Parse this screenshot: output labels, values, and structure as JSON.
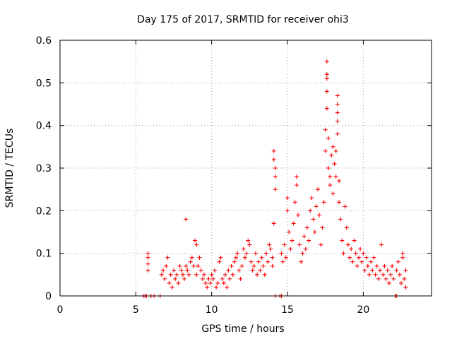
{
  "chart_data": {
    "type": "scatter",
    "title": "Day 175 of 2017, SRMTID for receiver ohi3",
    "xlabel": "GPS time / hours",
    "ylabel": "SRMTID / TECUs",
    "xlim": [
      0,
      24.5
    ],
    "ylim": [
      0,
      0.6
    ],
    "xticks": [
      0,
      5,
      10,
      15,
      20
    ],
    "yticks": [
      0,
      0.1,
      0.2,
      0.3,
      0.4,
      0.5,
      0.6
    ],
    "xtick_labels": [
      "0",
      "5",
      "10",
      "15",
      "20"
    ],
    "ytick_labels": [
      "0",
      "0.1",
      "0.2",
      "0.3",
      "0.4",
      "0.5",
      "0.6"
    ],
    "grid": true,
    "legend": "none",
    "marker": "plus",
    "marker_color": "#ff0000",
    "series": [
      {
        "name": "SRMTID",
        "points": [
          [
            5.5,
            0.0
          ],
          [
            5.6,
            0.0
          ],
          [
            5.7,
            0.0
          ],
          [
            6.0,
            0.0
          ],
          [
            6.2,
            0.0
          ],
          [
            6.6,
            0.0
          ],
          [
            5.8,
            0.1
          ],
          [
            5.8,
            0.09
          ],
          [
            5.8,
            0.075
          ],
          [
            5.8,
            0.06
          ],
          [
            6.7,
            0.05
          ],
          [
            6.8,
            0.06
          ],
          [
            6.9,
            0.04
          ],
          [
            7.0,
            0.07
          ],
          [
            7.1,
            0.09
          ],
          [
            7.2,
            0.03
          ],
          [
            7.3,
            0.05
          ],
          [
            7.4,
            0.02
          ],
          [
            7.5,
            0.06
          ],
          [
            7.6,
            0.04
          ],
          [
            7.7,
            0.05
          ],
          [
            7.8,
            0.03
          ],
          [
            7.9,
            0.07
          ],
          [
            8.0,
            0.06
          ],
          [
            8.1,
            0.05
          ],
          [
            8.2,
            0.04
          ],
          [
            8.3,
            0.18
          ],
          [
            8.3,
            0.07
          ],
          [
            8.4,
            0.06
          ],
          [
            8.5,
            0.05
          ],
          [
            8.6,
            0.08
          ],
          [
            8.7,
            0.09
          ],
          [
            8.8,
            0.07
          ],
          [
            8.9,
            0.13
          ],
          [
            9.0,
            0.12
          ],
          [
            9.0,
            0.05
          ],
          [
            9.1,
            0.07
          ],
          [
            9.2,
            0.09
          ],
          [
            9.3,
            0.06
          ],
          [
            9.4,
            0.04
          ],
          [
            9.5,
            0.05
          ],
          [
            9.6,
            0.03
          ],
          [
            9.7,
            0.02
          ],
          [
            9.8,
            0.04
          ],
          [
            9.9,
            0.03
          ],
          [
            10.0,
            0.05
          ],
          [
            10.1,
            0.04
          ],
          [
            10.2,
            0.06
          ],
          [
            10.3,
            0.02
          ],
          [
            10.4,
            0.03
          ],
          [
            10.5,
            0.08
          ],
          [
            10.6,
            0.09
          ],
          [
            10.7,
            0.04
          ],
          [
            10.8,
            0.03
          ],
          [
            10.9,
            0.05
          ],
          [
            11.0,
            0.02
          ],
          [
            11.1,
            0.06
          ],
          [
            11.2,
            0.04
          ],
          [
            11.3,
            0.07
          ],
          [
            11.4,
            0.05
          ],
          [
            11.5,
            0.08
          ],
          [
            11.6,
            0.09
          ],
          [
            11.7,
            0.1
          ],
          [
            11.8,
            0.06
          ],
          [
            11.9,
            0.04
          ],
          [
            12.0,
            0.07
          ],
          [
            12.1,
            0.11
          ],
          [
            12.2,
            0.09
          ],
          [
            12.3,
            0.1
          ],
          [
            12.4,
            0.13
          ],
          [
            12.5,
            0.12
          ],
          [
            12.6,
            0.08
          ],
          [
            12.7,
            0.06
          ],
          [
            12.8,
            0.07
          ],
          [
            12.9,
            0.1
          ],
          [
            13.0,
            0.05
          ],
          [
            13.1,
            0.08
          ],
          [
            13.2,
            0.06
          ],
          [
            13.3,
            0.09
          ],
          [
            13.4,
            0.07
          ],
          [
            13.5,
            0.05
          ],
          [
            13.6,
            0.1
          ],
          [
            13.7,
            0.08
          ],
          [
            13.8,
            0.12
          ],
          [
            13.9,
            0.11
          ],
          [
            14.0,
            0.09
          ],
          [
            14.0,
            0.07
          ],
          [
            14.1,
            0.34
          ],
          [
            14.1,
            0.32
          ],
          [
            14.2,
            0.3
          ],
          [
            14.2,
            0.28
          ],
          [
            14.2,
            0.25
          ],
          [
            14.1,
            0.17
          ],
          [
            14.2,
            0.0
          ],
          [
            14.5,
            0.0
          ],
          [
            14.6,
            0.0
          ],
          [
            14.6,
            0.1
          ],
          [
            14.7,
            0.08
          ],
          [
            14.8,
            0.12
          ],
          [
            14.9,
            0.09
          ],
          [
            15.0,
            0.2
          ],
          [
            15.0,
            0.23
          ],
          [
            15.1,
            0.15
          ],
          [
            15.2,
            0.11
          ],
          [
            15.3,
            0.13
          ],
          [
            15.4,
            0.17
          ],
          [
            15.5,
            0.22
          ],
          [
            15.6,
            0.28
          ],
          [
            15.6,
            0.26
          ],
          [
            15.7,
            0.19
          ],
          [
            15.8,
            0.12
          ],
          [
            15.9,
            0.08
          ],
          [
            16.0,
            0.1
          ],
          [
            16.1,
            0.14
          ],
          [
            16.2,
            0.11
          ],
          [
            16.3,
            0.16
          ],
          [
            16.4,
            0.13
          ],
          [
            16.5,
            0.2
          ],
          [
            16.6,
            0.23
          ],
          [
            16.7,
            0.18
          ],
          [
            16.8,
            0.15
          ],
          [
            16.9,
            0.21
          ],
          [
            17.0,
            0.25
          ],
          [
            17.1,
            0.19
          ],
          [
            17.2,
            0.12
          ],
          [
            17.3,
            0.16
          ],
          [
            17.4,
            0.22
          ],
          [
            17.5,
            0.34
          ],
          [
            17.5,
            0.39
          ],
          [
            17.6,
            0.55
          ],
          [
            17.6,
            0.52
          ],
          [
            17.6,
            0.51
          ],
          [
            17.6,
            0.48
          ],
          [
            17.6,
            0.44
          ],
          [
            17.7,
            0.37
          ],
          [
            17.7,
            0.3
          ],
          [
            17.8,
            0.28
          ],
          [
            17.8,
            0.26
          ],
          [
            17.9,
            0.33
          ],
          [
            18.0,
            0.35
          ],
          [
            18.0,
            0.24
          ],
          [
            18.1,
            0.31
          ],
          [
            18.2,
            0.34
          ],
          [
            18.2,
            0.28
          ],
          [
            18.3,
            0.47
          ],
          [
            18.3,
            0.45
          ],
          [
            18.3,
            0.43
          ],
          [
            18.3,
            0.41
          ],
          [
            18.3,
            0.38
          ],
          [
            18.4,
            0.27
          ],
          [
            18.4,
            0.22
          ],
          [
            18.5,
            0.18
          ],
          [
            18.6,
            0.13
          ],
          [
            18.7,
            0.1
          ],
          [
            18.8,
            0.21
          ],
          [
            18.9,
            0.16
          ],
          [
            19.0,
            0.12
          ],
          [
            19.1,
            0.09
          ],
          [
            19.2,
            0.11
          ],
          [
            19.3,
            0.08
          ],
          [
            19.4,
            0.13
          ],
          [
            19.5,
            0.1
          ],
          [
            19.6,
            0.07
          ],
          [
            19.7,
            0.09
          ],
          [
            19.8,
            0.11
          ],
          [
            19.9,
            0.08
          ],
          [
            20.0,
            0.1
          ],
          [
            20.1,
            0.06
          ],
          [
            20.2,
            0.09
          ],
          [
            20.3,
            0.07
          ],
          [
            20.4,
            0.05
          ],
          [
            20.5,
            0.08
          ],
          [
            20.6,
            0.06
          ],
          [
            20.7,
            0.09
          ],
          [
            20.8,
            0.05
          ],
          [
            20.9,
            0.07
          ],
          [
            21.0,
            0.04
          ],
          [
            21.1,
            0.06
          ],
          [
            21.2,
            0.12
          ],
          [
            21.3,
            0.05
          ],
          [
            21.4,
            0.07
          ],
          [
            21.5,
            0.04
          ],
          [
            21.6,
            0.06
          ],
          [
            21.7,
            0.03
          ],
          [
            21.8,
            0.05
          ],
          [
            21.9,
            0.07
          ],
          [
            22.0,
            0.04
          ],
          [
            22.1,
            0.0
          ],
          [
            22.2,
            0.0
          ],
          [
            22.2,
            0.06
          ],
          [
            22.3,
            0.08
          ],
          [
            22.4,
            0.05
          ],
          [
            22.5,
            0.03
          ],
          [
            22.6,
            0.09
          ],
          [
            22.6,
            0.1
          ],
          [
            22.7,
            0.04
          ],
          [
            22.8,
            0.06
          ],
          [
            22.8,
            0.02
          ]
        ]
      }
    ]
  }
}
